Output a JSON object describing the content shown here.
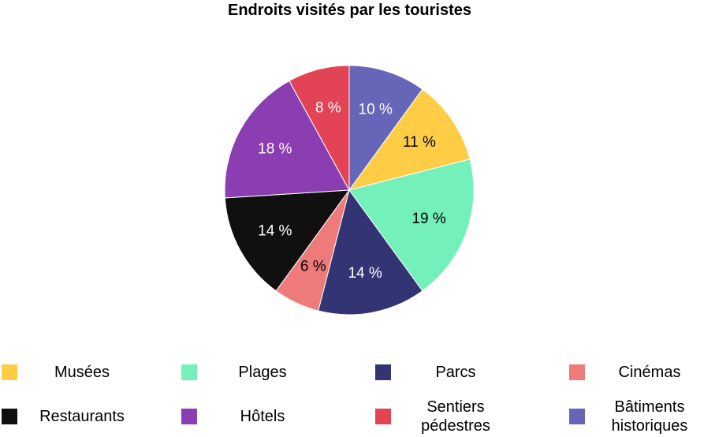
{
  "chart_data": {
    "type": "pie",
    "title": "Endroits visités par les touristes",
    "slices": [
      {
        "label": "Bâtiments historiques",
        "legend_label": "Bâtiments\nhistoriques",
        "value": 10,
        "value_label": "10 %",
        "color": "#6666b8",
        "label_color": "#ffffff"
      },
      {
        "label": "Musées",
        "legend_label": "Musées",
        "value": 11,
        "value_label": "11 %",
        "color": "#ffcd45",
        "label_color": "#000000"
      },
      {
        "label": "Plages",
        "legend_label": "Plages",
        "value": 19,
        "value_label": "19 %",
        "color": "#74f0ba",
        "label_color": "#000000"
      },
      {
        "label": "Parcs",
        "legend_label": "Parcs",
        "value": 14,
        "value_label": "14 %",
        "color": "#333473",
        "label_color": "#ffffff"
      },
      {
        "label": "Cinémas",
        "legend_label": "Cinémas",
        "value": 6,
        "value_label": "6 %",
        "color": "#ee7a79",
        "label_color": "#000000"
      },
      {
        "label": "Restaurants",
        "legend_label": "Restaurants",
        "value": 14,
        "value_label": "14 %",
        "color": "#101010",
        "label_color": "#ffffff"
      },
      {
        "label": "Hôtels",
        "legend_label": "Hôtels",
        "value": 18,
        "value_label": "18 %",
        "color": "#8a3eb1",
        "label_color": "#ffffff"
      },
      {
        "label": "Sentiers pédestres",
        "legend_label": "Sentiers\npédestres",
        "value": 8,
        "value_label": "8 %",
        "color": "#e24455",
        "label_color": "#ffffff"
      }
    ],
    "legend_order": [
      "Musées",
      "Plages",
      "Parcs",
      "Cinémas",
      "Restaurants",
      "Hôtels",
      "Sentiers pédestres",
      "Bâtiments historiques"
    ],
    "legend_position": "bottom"
  }
}
